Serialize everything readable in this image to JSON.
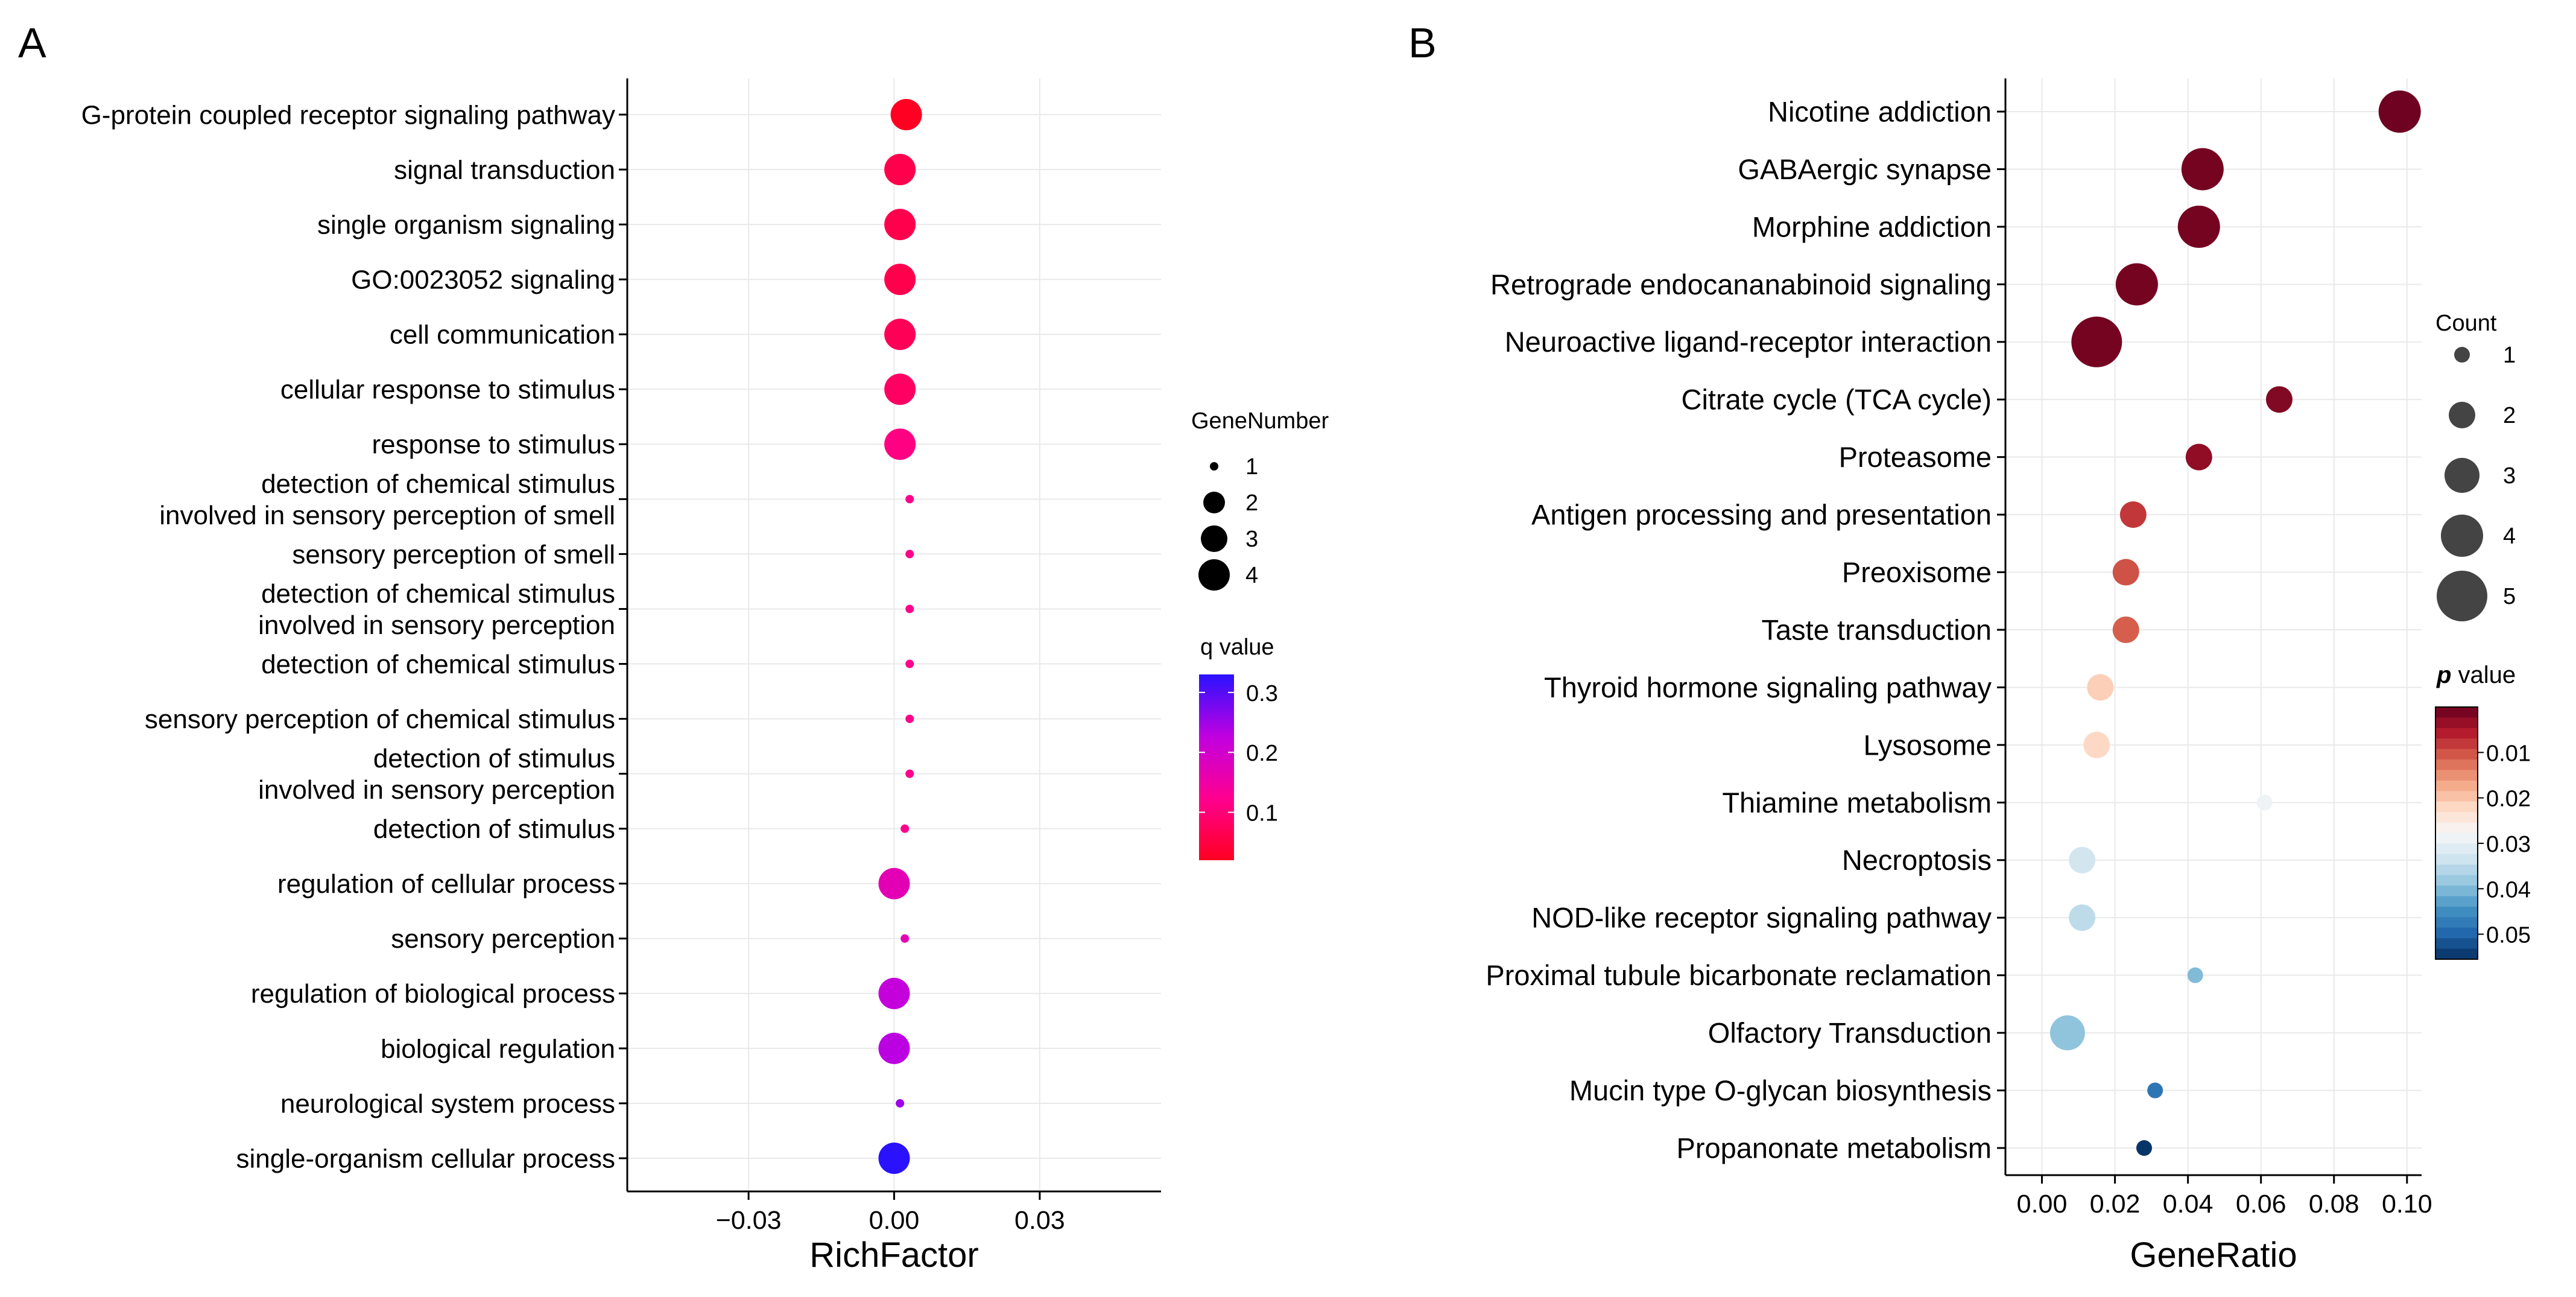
{
  "panels": [
    {
      "letter": "A"
    },
    {
      "letter": "B"
    }
  ],
  "chart_data": [
    {
      "type": "scatter",
      "panel": "A",
      "xlabel": "RichFactor",
      "ylabel": "",
      "xlim": [
        -0.055,
        0.055
      ],
      "xticks": [
        -0.03,
        0.0,
        0.03
      ],
      "xtick_labels": [
        "−0.03",
        "0.00",
        "0.03"
      ],
      "grid": true,
      "size_legend": {
        "title": "GeneNumber",
        "values": [
          1,
          2,
          3,
          4
        ]
      },
      "color_legend": {
        "title": "q value",
        "ticks": [
          0.1,
          0.2,
          0.3
        ],
        "tick_labels": [
          "0.1",
          "0.2",
          "0.3"
        ],
        "range": [
          0.02,
          0.33
        ],
        "colors": [
          "#ff0022",
          "#ff0090",
          "#c000e0",
          "#2a12ff"
        ]
      },
      "categories": [
        "G-protein coupled receptor signaling pathway",
        "signal transduction",
        "single organism signaling",
        "GO:0023052 signaling",
        "cell communication",
        "cellular response to stimulus",
        "response to stimulus",
        "detection of chemical stimulus\ninvolved in sensory perception of smell",
        "sensory perception of smell",
        "detection of chemical stimulus\ninvolved in sensory perception",
        "detection of chemical stimulus",
        "sensory perception of chemical stimulus",
        "detection of stimulus\ninvolved in sensory perception",
        "detection of stimulus",
        "regulation of cellular process",
        "sensory perception",
        "regulation of biological process",
        "biological regulation",
        "neurological system process",
        "single-organism cellular process"
      ],
      "points": [
        {
          "x": 0.0025,
          "size": 4,
          "color": 0.02
        },
        {
          "x": 0.0012,
          "size": 4,
          "color": 0.06
        },
        {
          "x": 0.0012,
          "size": 4,
          "color": 0.06
        },
        {
          "x": 0.0012,
          "size": 4,
          "color": 0.06
        },
        {
          "x": 0.0012,
          "size": 4,
          "color": 0.07
        },
        {
          "x": 0.0012,
          "size": 4,
          "color": 0.08
        },
        {
          "x": 0.0012,
          "size": 4,
          "color": 0.11
        },
        {
          "x": 0.0032,
          "size": 1,
          "color": 0.12
        },
        {
          "x": 0.0032,
          "size": 1,
          "color": 0.12
        },
        {
          "x": 0.0032,
          "size": 1,
          "color": 0.12
        },
        {
          "x": 0.0032,
          "size": 1,
          "color": 0.12
        },
        {
          "x": 0.0032,
          "size": 1,
          "color": 0.12
        },
        {
          "x": 0.0032,
          "size": 1,
          "color": 0.12
        },
        {
          "x": 0.0022,
          "size": 1,
          "color": 0.12
        },
        {
          "x": 0.0,
          "size": 4,
          "color": 0.17
        },
        {
          "x": 0.0022,
          "size": 1,
          "color": 0.17
        },
        {
          "x": 0.0,
          "size": 4,
          "color": 0.22
        },
        {
          "x": 0.0,
          "size": 4,
          "color": 0.23
        },
        {
          "x": 0.0012,
          "size": 1,
          "color": 0.25
        },
        {
          "x": 0.0,
          "size": 4,
          "color": 0.33
        }
      ]
    },
    {
      "type": "scatter",
      "panel": "B",
      "xlabel": "GeneRatio",
      "ylabel": "",
      "xlim": [
        -0.01,
        0.104
      ],
      "xticks": [
        0.0,
        0.02,
        0.04,
        0.06,
        0.08,
        0.1
      ],
      "xtick_labels": [
        "0.00",
        "0.02",
        "0.04",
        "0.06",
        "0.08",
        "0.10"
      ],
      "grid": true,
      "size_legend": {
        "title": "Count",
        "values": [
          1,
          2,
          3,
          4,
          5
        ]
      },
      "color_legend": {
        "title": "p value",
        "ticks": [
          0.01,
          0.02,
          0.03,
          0.04,
          0.05
        ],
        "tick_labels": [
          "0.01",
          "0.02",
          "0.03",
          "0.04",
          "0.05"
        ],
        "range": [
          0.0,
          0.0555
        ],
        "colors": [
          "#67001f",
          "#b2182b",
          "#d6604d",
          "#f4a582",
          "#fddbc7",
          "#f7f7f7",
          "#d1e5f0",
          "#92c5de",
          "#4393c3",
          "#2166ac",
          "#053061"
        ]
      },
      "categories": [
        "Nicotine addiction",
        "GABAergic synapse",
        "Morphine addiction",
        "Retrograde endocananabinoid signaling",
        "Neuroactive ligand-receptor interaction",
        "Citrate cycle (TCA cycle)",
        "Proteasome",
        "Antigen processing and presentation",
        "Preoxisome",
        "Taste transduction",
        "Thyroid hormone signaling pathway",
        "Lysosome",
        "Thiamine metabolism",
        "Necroptosis",
        "NOD-like receptor signaling pathway",
        "Proximal tubule bicarbonate reclamation",
        "Olfactory Transduction",
        "Mucin type O-glycan biosynthesis",
        "Propanonate metabolism"
      ],
      "points": [
        {
          "x": 0.098,
          "size": 4,
          "color": 0.0005
        },
        {
          "x": 0.044,
          "size": 4,
          "color": 0.001
        },
        {
          "x": 0.043,
          "size": 4,
          "color": 0.001
        },
        {
          "x": 0.026,
          "size": 4,
          "color": 0.001
        },
        {
          "x": 0.015,
          "size": 5,
          "color": 0.001
        },
        {
          "x": 0.065,
          "size": 2,
          "color": 0.002
        },
        {
          "x": 0.043,
          "size": 2,
          "color": 0.003
        },
        {
          "x": 0.025,
          "size": 2,
          "color": 0.008
        },
        {
          "x": 0.023,
          "size": 2,
          "color": 0.01
        },
        {
          "x": 0.023,
          "size": 2,
          "color": 0.011
        },
        {
          "x": 0.016,
          "size": 2,
          "color": 0.021
        },
        {
          "x": 0.015,
          "size": 2,
          "color": 0.022
        },
        {
          "x": 0.061,
          "size": 1,
          "color": 0.029
        },
        {
          "x": 0.011,
          "size": 2,
          "color": 0.033
        },
        {
          "x": 0.011,
          "size": 2,
          "color": 0.035
        },
        {
          "x": 0.042,
          "size": 1,
          "color": 0.04
        },
        {
          "x": 0.007,
          "size": 3,
          "color": 0.039
        },
        {
          "x": 0.031,
          "size": 1,
          "color": 0.048
        },
        {
          "x": 0.028,
          "size": 1,
          "color": 0.055
        }
      ]
    }
  ]
}
